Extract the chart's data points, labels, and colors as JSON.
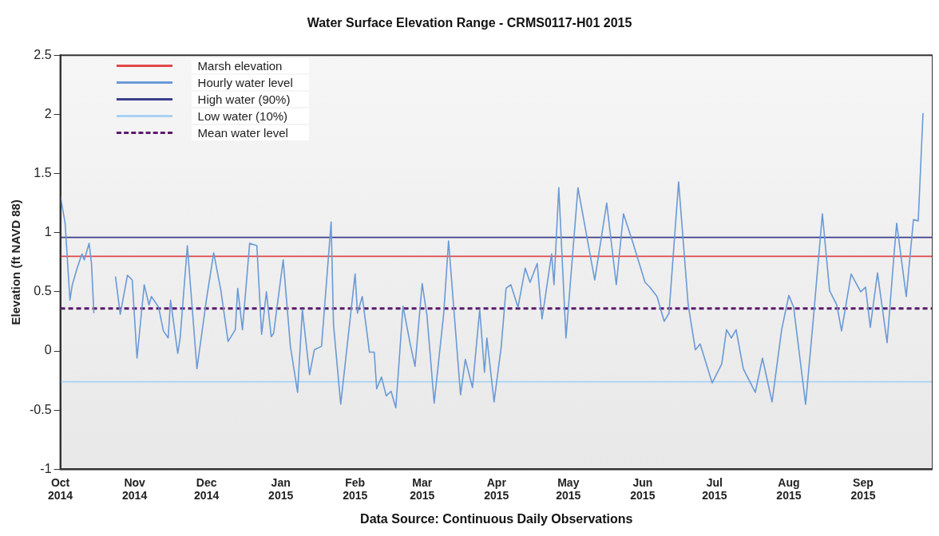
{
  "chart_data": {
    "type": "line",
    "title": "Water Surface Elevation Range - CRMS0117-H01 2015",
    "ylabel": "Elevation (ft NAVD 88)",
    "annotations": [
      "Data Source: Continuous Daily Observations"
    ],
    "x": [
      "2014-10-01",
      "2014-10-03",
      "2014-10-05",
      "2014-10-06",
      "2014-10-08",
      "2014-10-10",
      "2014-10-11",
      "2014-10-13",
      "2014-10-14",
      "2014-10-15",
      "2014-10-20",
      "2014-10-24",
      "2014-10-26",
      "2014-10-29",
      "2014-10-31",
      "2014-11-02",
      "2014-11-05",
      "2014-11-07",
      "2014-11-08",
      "2014-11-11",
      "2014-11-13",
      "2014-11-15",
      "2014-11-16",
      "2014-11-19",
      "2014-11-20",
      "2014-11-23",
      "2014-11-27",
      "2014-12-01",
      "2014-12-04",
      "2014-12-07",
      "2014-12-10",
      "2014-12-13",
      "2014-12-14",
      "2014-12-16",
      "2014-12-19",
      "2014-12-22",
      "2014-12-24",
      "2014-12-26",
      "2014-12-28",
      "2014-12-29",
      "2015-01-02",
      "2015-01-05",
      "2015-01-08",
      "2015-01-10",
      "2015-01-13",
      "2015-01-15",
      "2015-01-18",
      "2015-01-22",
      "2015-01-23",
      "2015-01-26",
      "2015-02-01",
      "2015-02-02",
      "2015-02-04",
      "2015-02-07",
      "2015-02-09",
      "2015-02-10",
      "2015-02-12",
      "2015-02-14",
      "2015-02-16",
      "2015-02-18",
      "2015-02-21",
      "2015-02-24",
      "2015-02-26",
      "2015-03-01",
      "2015-03-03",
      "2015-03-06",
      "2015-03-10",
      "2015-03-12",
      "2015-03-17",
      "2015-03-19",
      "2015-03-22",
      "2015-03-25",
      "2015-03-27",
      "2015-03-28",
      "2015-03-31",
      "2015-04-03",
      "2015-04-05",
      "2015-04-07",
      "2015-04-10",
      "2015-04-13",
      "2015-04-15",
      "2015-04-18",
      "2015-04-20",
      "2015-04-24",
      "2015-04-25",
      "2015-04-27",
      "2015-04-30",
      "2015-05-05",
      "2015-05-12",
      "2015-05-17",
      "2015-05-21",
      "2015-05-24",
      "2015-05-28",
      "2015-06-02",
      "2015-06-04",
      "2015-06-07",
      "2015-06-10",
      "2015-06-12",
      "2015-06-16",
      "2015-06-20",
      "2015-06-23",
      "2015-06-25",
      "2015-06-30",
      "2015-07-04",
      "2015-07-06",
      "2015-07-08",
      "2015-07-10",
      "2015-07-13",
      "2015-07-18",
      "2015-07-21",
      "2015-07-25",
      "2015-07-29",
      "2015-08-01",
      "2015-08-03",
      "2015-08-08",
      "2015-08-11",
      "2015-08-15",
      "2015-08-18",
      "2015-08-21",
      "2015-08-23",
      "2015-08-27",
      "2015-08-31",
      "2015-09-02",
      "2015-09-04",
      "2015-09-07",
      "2015-09-11",
      "2015-09-14",
      "2015-09-15",
      "2015-09-19",
      "2015-09-22",
      "2015-09-24",
      "2015-09-26"
    ],
    "series": [
      {
        "name": "Hourly water level",
        "color": "#6a9ad6",
        "values": [
          1.31,
          1.08,
          0.43,
          0.56,
          0.7,
          0.82,
          0.77,
          0.91,
          0.74,
          0.32,
          null,
          0.63,
          0.31,
          0.64,
          0.6,
          -0.06,
          0.56,
          0.39,
          0.46,
          0.37,
          0.17,
          0.11,
          0.43,
          -0.02,
          0.11,
          0.89,
          -0.15,
          0.44,
          0.83,
          0.51,
          0.08,
          0.18,
          0.53,
          0.18,
          0.91,
          0.89,
          0.14,
          0.5,
          0.12,
          0.15,
          0.77,
          0.04,
          -0.35,
          0.35,
          -0.2,
          0.01,
          0.04,
          1.09,
          0.22,
          -0.45,
          0.65,
          0.32,
          0.46,
          -0.01,
          -0.01,
          -0.32,
          -0.22,
          -0.38,
          -0.34,
          -0.48,
          0.38,
          0.06,
          -0.13,
          0.57,
          0.3,
          -0.44,
          0.32,
          0.93,
          -0.37,
          -0.07,
          -0.31,
          0.35,
          -0.18,
          0.11,
          -0.43,
          0.04,
          0.53,
          0.56,
          0.37,
          0.7,
          0.58,
          0.74,
          0.27,
          0.82,
          0.56,
          1.38,
          0.11,
          1.38,
          0.6,
          1.25,
          0.56,
          1.16,
          0.91,
          0.58,
          0.54,
          0.46,
          0.25,
          0.32,
          1.43,
          0.39,
          0.01,
          0.06,
          -0.27,
          -0.11,
          0.18,
          0.11,
          0.18,
          -0.15,
          -0.35,
          -0.06,
          -0.43,
          0.18,
          0.47,
          0.37,
          -0.45,
          0.22,
          1.16,
          0.51,
          0.39,
          0.17,
          0.65,
          0.5,
          0.54,
          0.2,
          0.66,
          0.07,
          0.84,
          1.08,
          0.46,
          1.11,
          1.1,
          2.01
        ]
      }
    ],
    "ref_lines": [
      {
        "axis": "y",
        "value": 0.8,
        "label": "Marsh elevation",
        "color": "#e04848"
      },
      {
        "axis": "y",
        "value": 0.96,
        "label": "High water (90%)",
        "color": "#3c3f8a"
      },
      {
        "axis": "y",
        "value": -0.26,
        "label": "Low water (10%)",
        "color": "#a9d2f2"
      },
      {
        "axis": "y",
        "value": 0.36,
        "label": "Mean water level",
        "color": "#5b1a6e",
        "line_style": "dashed"
      }
    ],
    "xlim": [
      "2014-10-01",
      "2015-09-30"
    ],
    "xticks": [
      {
        "value": "2014-10-01",
        "label": "Oct 2014"
      },
      {
        "value": "2014-11-01",
        "label": "Nov 2014"
      },
      {
        "value": "2014-12-01",
        "label": "Dec 2014"
      },
      {
        "value": "2015-01-01",
        "label": "Jan 2015"
      },
      {
        "value": "2015-02-01",
        "label": "Feb 2015"
      },
      {
        "value": "2015-03-01",
        "label": "Mar 2015"
      },
      {
        "value": "2015-04-01",
        "label": "Apr 2015"
      },
      {
        "value": "2015-05-01",
        "label": "May 2015"
      },
      {
        "value": "2015-06-01",
        "label": "Jun 2015"
      },
      {
        "value": "2015-07-01",
        "label": "Jul 2015"
      },
      {
        "value": "2015-08-01",
        "label": "Aug 2015"
      },
      {
        "value": "2015-09-01",
        "label": "Sep 2015"
      }
    ],
    "ylim": [
      -1,
      2.5
    ],
    "yticks": [
      -1,
      -0.5,
      0,
      0.5,
      1,
      1.5,
      2,
      2.5
    ],
    "grid": false,
    "legend": "top left",
    "marker": "none",
    "line_style": "solid"
  }
}
